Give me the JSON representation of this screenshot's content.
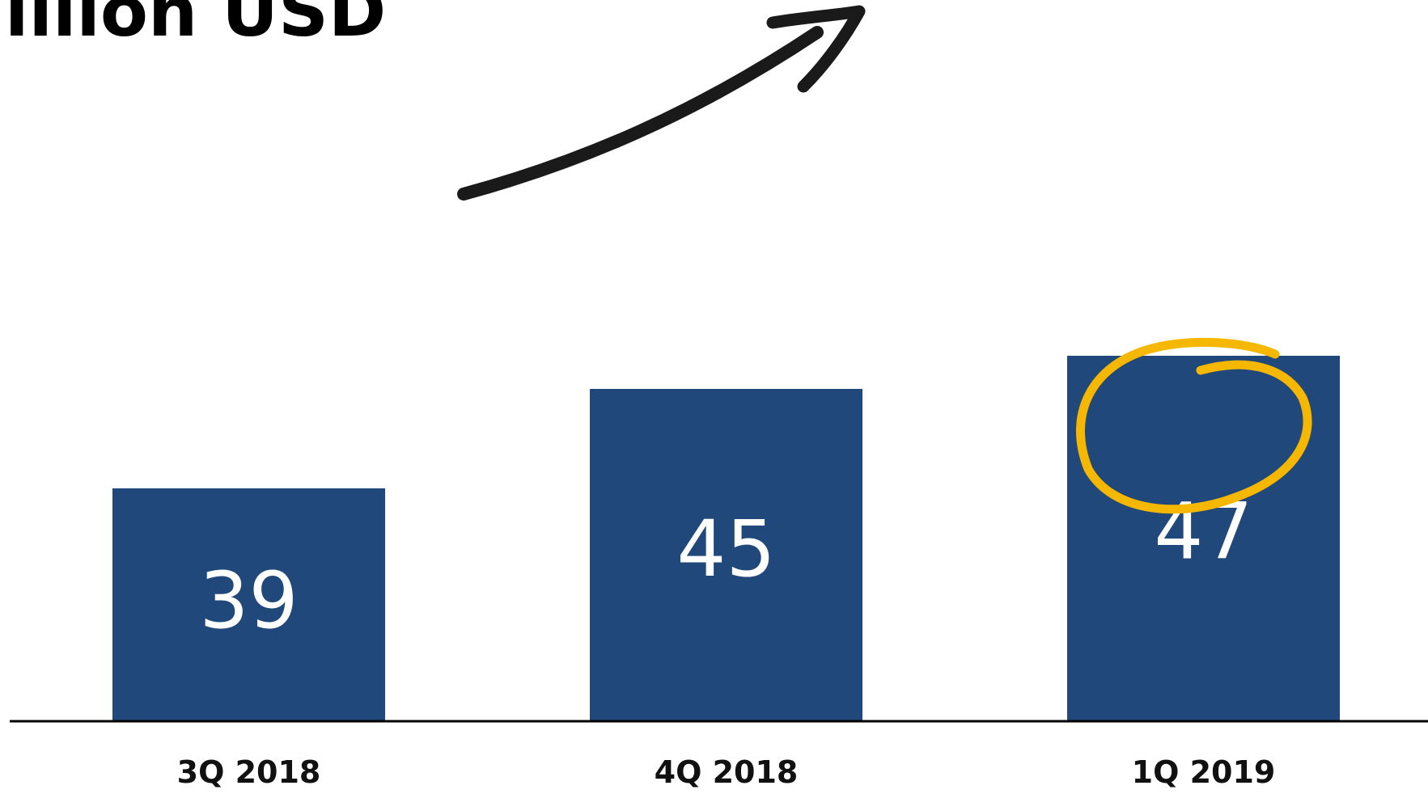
{
  "title": "illion USD",
  "colors": {
    "bar": "#21487A",
    "value_text": "#FFFFFF",
    "axis": "#000000",
    "highlight_circle": "#F6B700",
    "arrow": "#1A1A1A"
  },
  "icons": {
    "trend_arrow": "hand-drawn-up-arrow-icon",
    "highlight": "hand-drawn-circle-icon"
  },
  "chart_data": {
    "type": "bar",
    "title": "illion USD",
    "categories": [
      "3Q 2018",
      "4Q 2018",
      "1Q 2019"
    ],
    "values": [
      39,
      45,
      47
    ],
    "value_labels": [
      "39",
      "45",
      "47"
    ],
    "highlighted_category": "1Q 2019",
    "xlabel": "",
    "ylabel": "",
    "ylim": [
      25,
      48
    ],
    "grid": false,
    "legend": "none"
  }
}
